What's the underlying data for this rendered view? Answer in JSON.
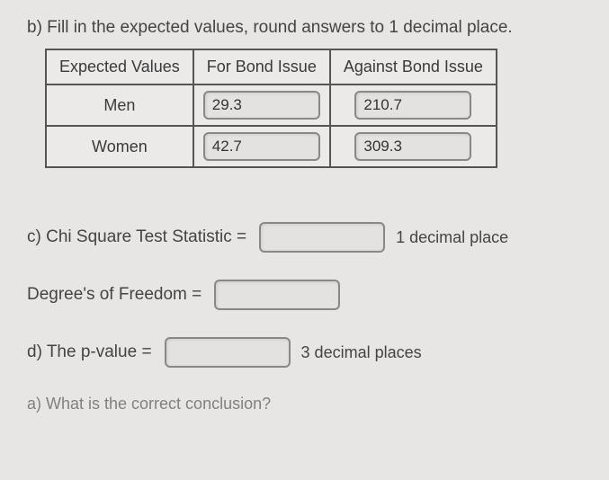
{
  "partB": {
    "header": "b) Fill in the expected values, round answers to 1 decimal place.",
    "table": {
      "colHeaders": [
        "Expected Values",
        "For Bond Issue",
        "Against Bond Issue"
      ],
      "rows": [
        {
          "label": "Men",
          "for": "29.3",
          "against": "210.7"
        },
        {
          "label": "Women",
          "for": "42.7",
          "against": "309.3"
        }
      ]
    }
  },
  "partC": {
    "label": "c) Chi Square Test Statistic =",
    "hint": "1 decimal place",
    "dfLabel": "Degree's of Freedom ="
  },
  "partD": {
    "label": "d) The p-value =",
    "hint": "3 decimal places"
  },
  "cutoff": "a) What is the correct conclusion?"
}
